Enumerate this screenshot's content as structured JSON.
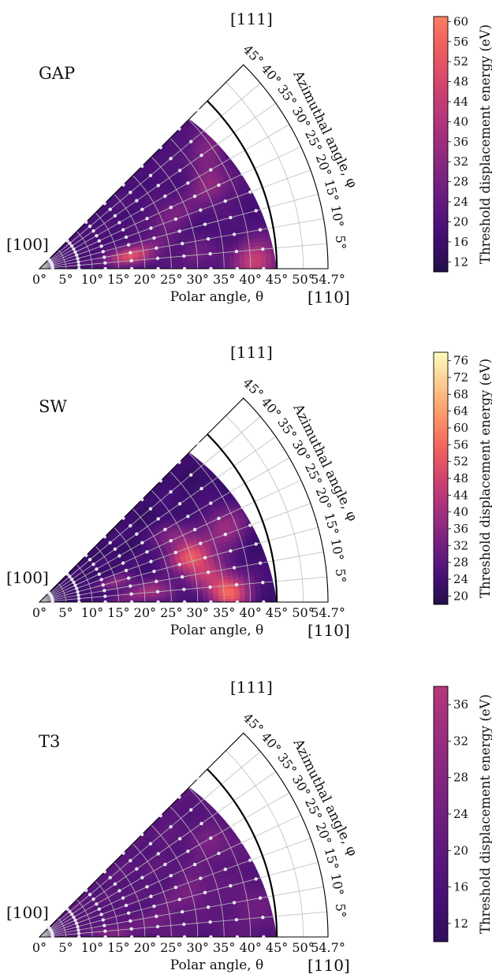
{
  "colors": {
    "colormap": "magma",
    "grid_line": "#d6d6d6",
    "sample_point": "#e8e8ef",
    "boundary": "#000000"
  },
  "shared_axes": {
    "xlabel": "Polar angle, θ",
    "ylabel": "Azimuthal angle, φ",
    "theta_ticks": [
      "0°",
      "5°",
      "10°",
      "15°",
      "20°",
      "25°",
      "30°",
      "35°",
      "40°",
      "45°",
      "50°",
      "54.7°"
    ],
    "phi_ticks": [
      "5°",
      "10°",
      "15°",
      "20°",
      "25°",
      "30°",
      "35°",
      "40°",
      "45°"
    ],
    "directions": {
      "origin": "[100]",
      "x_end": "[110]",
      "apex": "[111]"
    },
    "colorbar_label": "Threshold displacement energy (eV)"
  },
  "chart_data": [
    {
      "type": "heatmap",
      "title": "GAP",
      "theta_range": [
        0,
        54.7
      ],
      "phi_range": [
        0,
        45
      ],
      "colorbar_range": [
        10,
        61
      ],
      "colorbar_ticks": [
        12,
        16,
        20,
        24,
        28,
        32,
        36,
        40,
        44,
        48,
        52,
        56,
        60
      ],
      "base_value": 19,
      "hotspots": [
        {
          "theta": 17,
          "phi": 8,
          "value": 50
        },
        {
          "theta": 41,
          "phi": 2,
          "value": 46
        },
        {
          "theta": 36,
          "phi": 26,
          "value": 34
        },
        {
          "theta": 27,
          "phi": 22,
          "value": 30
        },
        {
          "theta": 22,
          "phi": 12,
          "value": 27
        },
        {
          "theta": 39,
          "phi": 36,
          "value": 30
        },
        {
          "theta": 30,
          "phi": 5,
          "value": 26
        }
      ]
    },
    {
      "type": "heatmap",
      "title": "SW",
      "theta_range": [
        0,
        54.7
      ],
      "phi_range": [
        0,
        45
      ],
      "colorbar_range": [
        18,
        78
      ],
      "colorbar_ticks": [
        20,
        24,
        28,
        32,
        36,
        40,
        44,
        48,
        52,
        56,
        60,
        64,
        68,
        72,
        76
      ],
      "base_value": 23,
      "hotspots": [
        {
          "theta": 30,
          "phi": 17,
          "value": 52
        },
        {
          "theta": 36,
          "phi": 3,
          "value": 55
        },
        {
          "theta": 32,
          "phi": 10,
          "value": 40
        },
        {
          "theta": 22,
          "phi": 6,
          "value": 38
        },
        {
          "theta": 38,
          "phi": 22,
          "value": 40
        },
        {
          "theta": 15,
          "phi": 15,
          "value": 35
        },
        {
          "theta": 28,
          "phi": 26,
          "value": 35
        },
        {
          "theta": 17,
          "phi": 3,
          "value": 32
        }
      ]
    },
    {
      "type": "heatmap",
      "title": "T3",
      "theta_range": [
        0,
        54.7
      ],
      "phi_range": [
        0,
        45
      ],
      "colorbar_range": [
        10,
        38
      ],
      "colorbar_ticks": [
        12,
        16,
        20,
        24,
        28,
        32,
        36
      ],
      "base_value": 19,
      "hotspots": [
        {
          "theta": 14,
          "phi": 4,
          "value": 27
        },
        {
          "theta": 30,
          "phi": 17,
          "value": 26
        },
        {
          "theta": 37,
          "phi": 28,
          "value": 25
        },
        {
          "theta": 23,
          "phi": 9,
          "value": 24
        },
        {
          "theta": 40,
          "phi": 8,
          "value": 23
        }
      ]
    }
  ]
}
